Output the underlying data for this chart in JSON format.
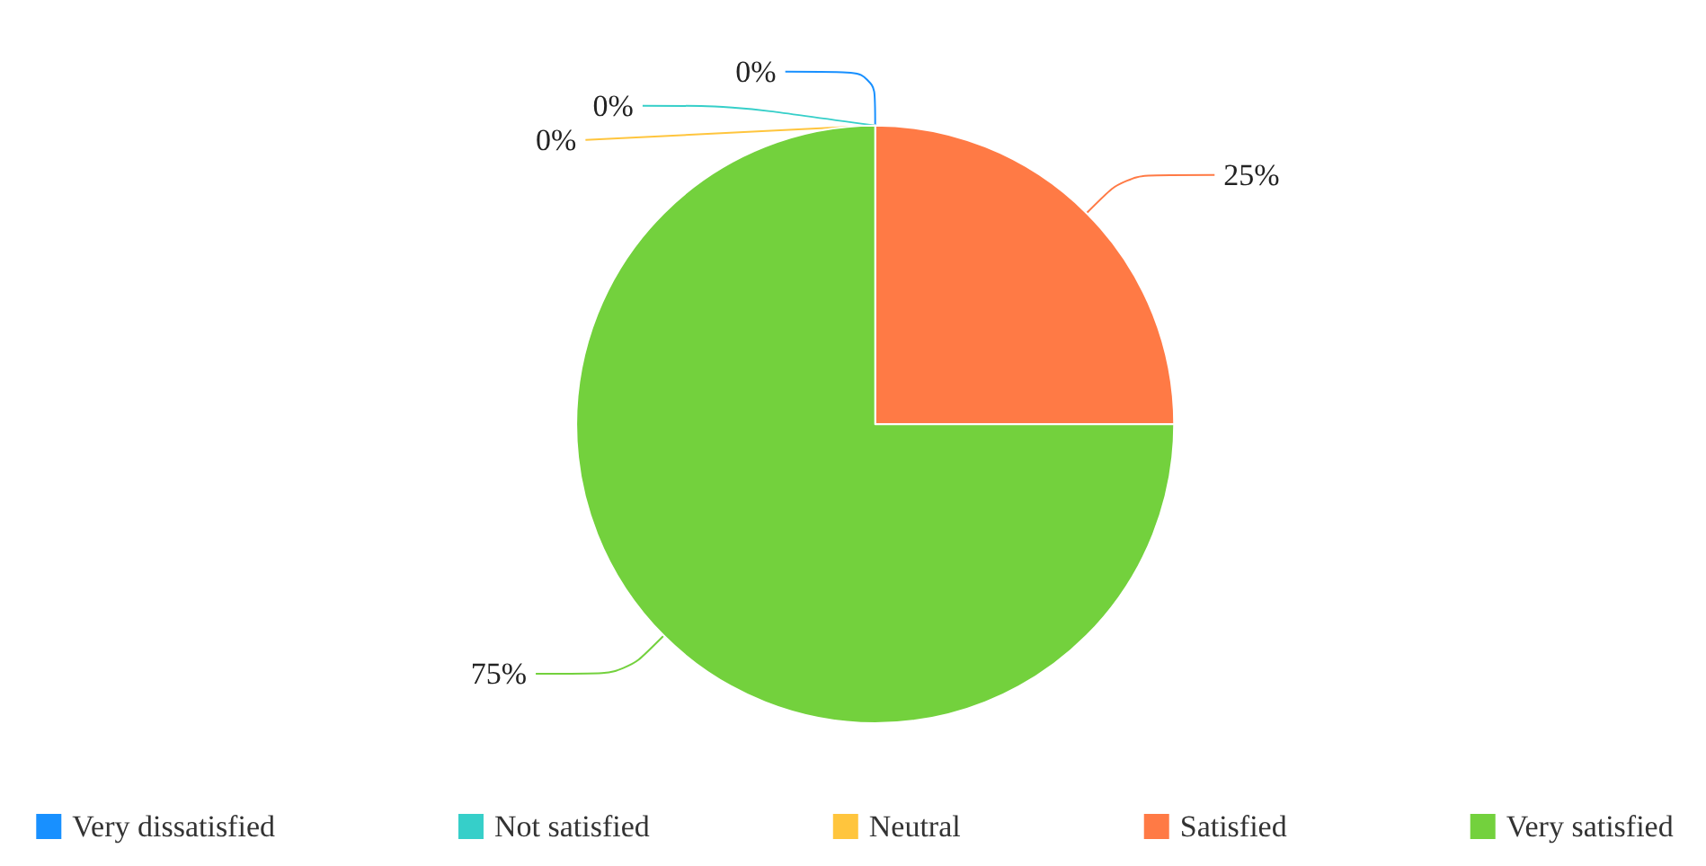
{
  "chart_data": {
    "type": "pie",
    "categories": [
      "Very dissatisfied",
      "Not satisfied",
      "Neutral",
      "Satisfied",
      "Very satisfied"
    ],
    "values": [
      0,
      0,
      0,
      25,
      75
    ],
    "value_labels": [
      "0%",
      "0%",
      "0%",
      "25%",
      "75%"
    ],
    "colors": [
      "#1890ff",
      "#36cfc9",
      "#ffc53d",
      "#ff7a45",
      "#73d13d"
    ],
    "legend": "bottom"
  }
}
